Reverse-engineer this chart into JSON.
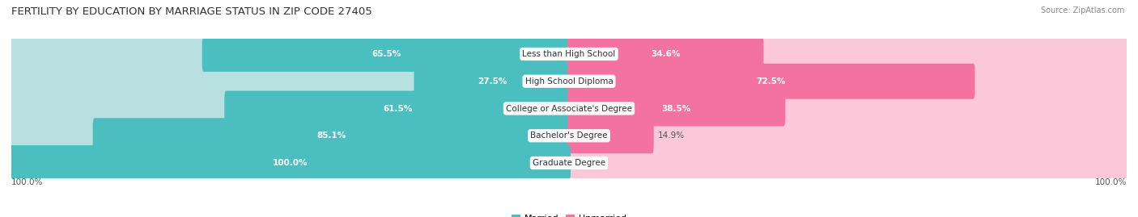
{
  "title": "FERTILITY BY EDUCATION BY MARRIAGE STATUS IN ZIP CODE 27405",
  "source": "Source: ZipAtlas.com",
  "categories": [
    "Less than High School",
    "High School Diploma",
    "College or Associate's Degree",
    "Bachelor's Degree",
    "Graduate Degree"
  ],
  "married_values": [
    65.5,
    27.5,
    61.5,
    85.1,
    100.0
  ],
  "unmarried_values": [
    34.6,
    72.5,
    38.5,
    14.9,
    0.0
  ],
  "married_color": "#4BBFBF",
  "unmarried_color": "#F472A0",
  "married_color_light": "#B8E0E0",
  "unmarried_color_light": "#FAC8D8",
  "bar_height": 0.7,
  "label_fontsize": 7.5,
  "title_fontsize": 9.5,
  "legend_fontsize": 8,
  "value_fontsize": 7.5,
  "axis_label_left": "100.0%",
  "axis_label_right": "100.0%",
  "background_color": "#FFFFFF",
  "row_bg": "#EDEDED",
  "category_label_fontsize": 7.5,
  "inside_label_threshold": 20
}
